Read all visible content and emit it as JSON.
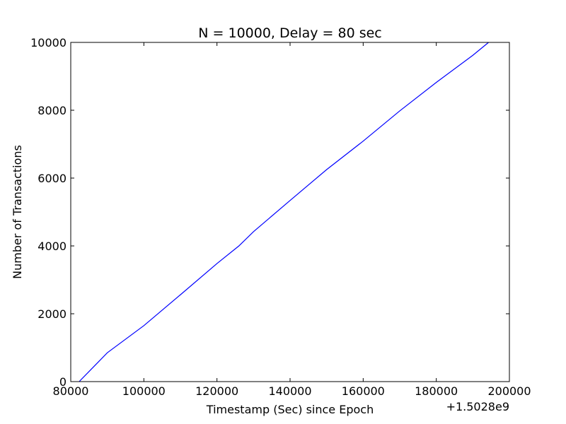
{
  "chart_data": {
    "type": "line",
    "title": "N = 10000, Delay = 80 sec",
    "xlabel": "Timestamp (Sec) since Epoch",
    "ylabel": "Number of Transactions",
    "x_offset_label": "+1.5028e9",
    "xlim": [
      80000,
      200000
    ],
    "ylim": [
      0,
      10000
    ],
    "xticks": [
      80000,
      100000,
      120000,
      140000,
      160000,
      180000,
      200000
    ],
    "yticks": [
      0,
      2000,
      4000,
      6000,
      8000,
      10000
    ],
    "grid": false,
    "series": [
      {
        "color": "#0000ff",
        "x": [
          82300,
          90000,
          100000,
          110000,
          120000,
          126000,
          130000,
          140000,
          150000,
          160000,
          170000,
          180000,
          190000,
          194300
        ],
        "y": [
          0,
          850,
          1650,
          2560,
          3480,
          4000,
          4420,
          5340,
          6250,
          7090,
          7980,
          8820,
          9620,
          10000
        ]
      }
    ]
  }
}
